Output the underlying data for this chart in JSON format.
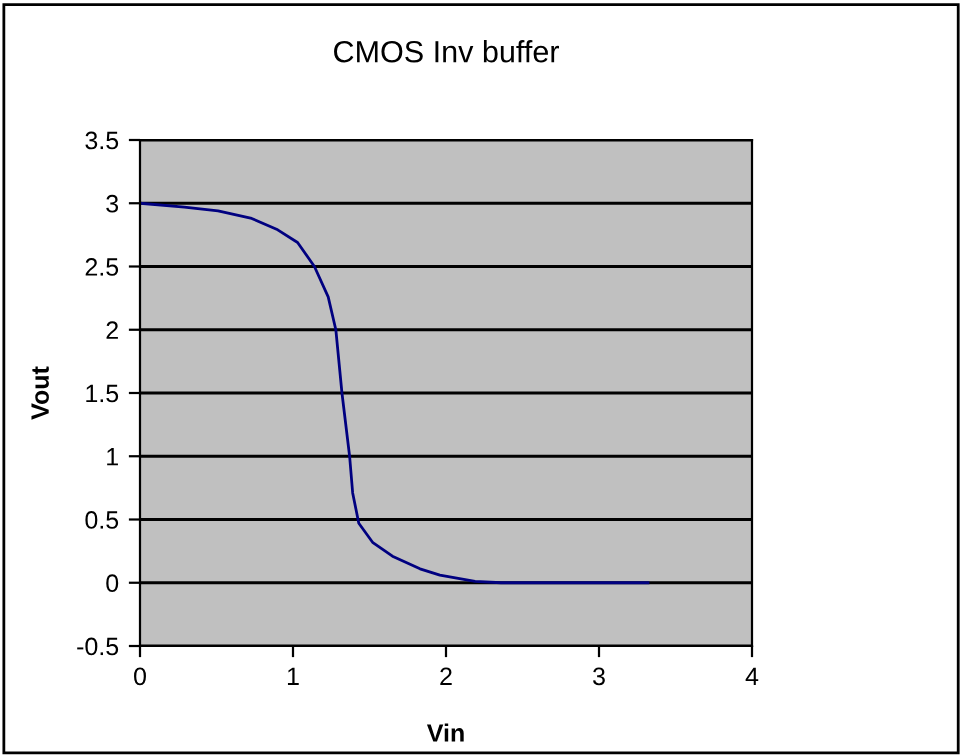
{
  "chart_data": {
    "type": "line",
    "title": "CMOS Inv buffer",
    "xlabel": "Vin",
    "ylabel": "Vout",
    "x": [
      0,
      0.29,
      0.51,
      0.73,
      0.9,
      1.03,
      1.14,
      1.23,
      1.28,
      1.32,
      1.37,
      1.39,
      1.43,
      1.52,
      1.65,
      1.83,
      1.96,
      2.19,
      2.36,
      2.8,
      3.32
    ],
    "series": [
      {
        "color": "#000080",
        "values": [
          3.0,
          2.97,
          2.94,
          2.88,
          2.79,
          2.69,
          2.5,
          2.26,
          2.0,
          1.5,
          1.0,
          0.71,
          0.47,
          0.32,
          0.21,
          0.11,
          0.06,
          0.01,
          0,
          0,
          0
        ]
      }
    ],
    "xlim": [
      0,
      4
    ],
    "xticks": [
      0,
      1,
      2,
      3,
      4
    ],
    "ylim": [
      -0.5,
      3.5
    ],
    "yticks": [
      -0.5,
      0,
      0.5,
      1,
      1.5,
      2,
      2.5,
      3,
      3.5
    ],
    "grid": "y",
    "marker": "none",
    "line_style": "solid",
    "legend": false
  }
}
